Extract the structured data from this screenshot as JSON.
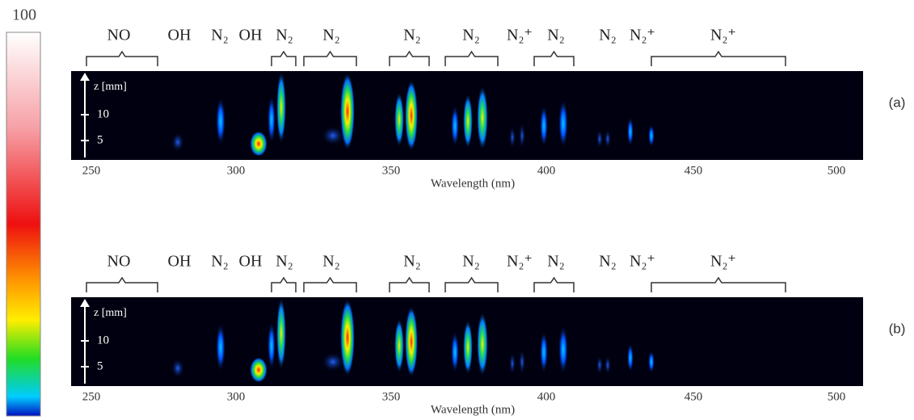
{
  "colorbar": {
    "max_label": "100"
  },
  "panels": [
    {
      "label": "(a)",
      "species": [
        "NO",
        "OH",
        "N₂",
        "OH",
        "N₂",
        "N₂",
        "N₂",
        "N₂",
        "N₂⁺",
        "N₂",
        "N₂",
        "N₂⁺",
        "N₂⁺"
      ],
      "z_axis": {
        "title": "z [mm]",
        "ticks": [
          "10",
          "5"
        ]
      },
      "x_axis": {
        "title": "Wavelength (nm)",
        "ticks": [
          "250",
          "300",
          "350",
          "400",
          "450",
          "500"
        ]
      }
    },
    {
      "label": "(b)",
      "species": [
        "NO",
        "OH",
        "N₂",
        "OH",
        "N₂",
        "N₂",
        "N₂",
        "N₂",
        "N₂⁺",
        "N₂",
        "N₂",
        "N₂⁺",
        "N₂⁺"
      ],
      "z_axis": {
        "title": "z [mm]",
        "ticks": [
          "10",
          "5"
        ]
      },
      "x_axis": {
        "title": "Wavelength (nm)",
        "ticks": [
          "250",
          "300",
          "350",
          "400",
          "450",
          "500"
        ]
      }
    }
  ]
}
